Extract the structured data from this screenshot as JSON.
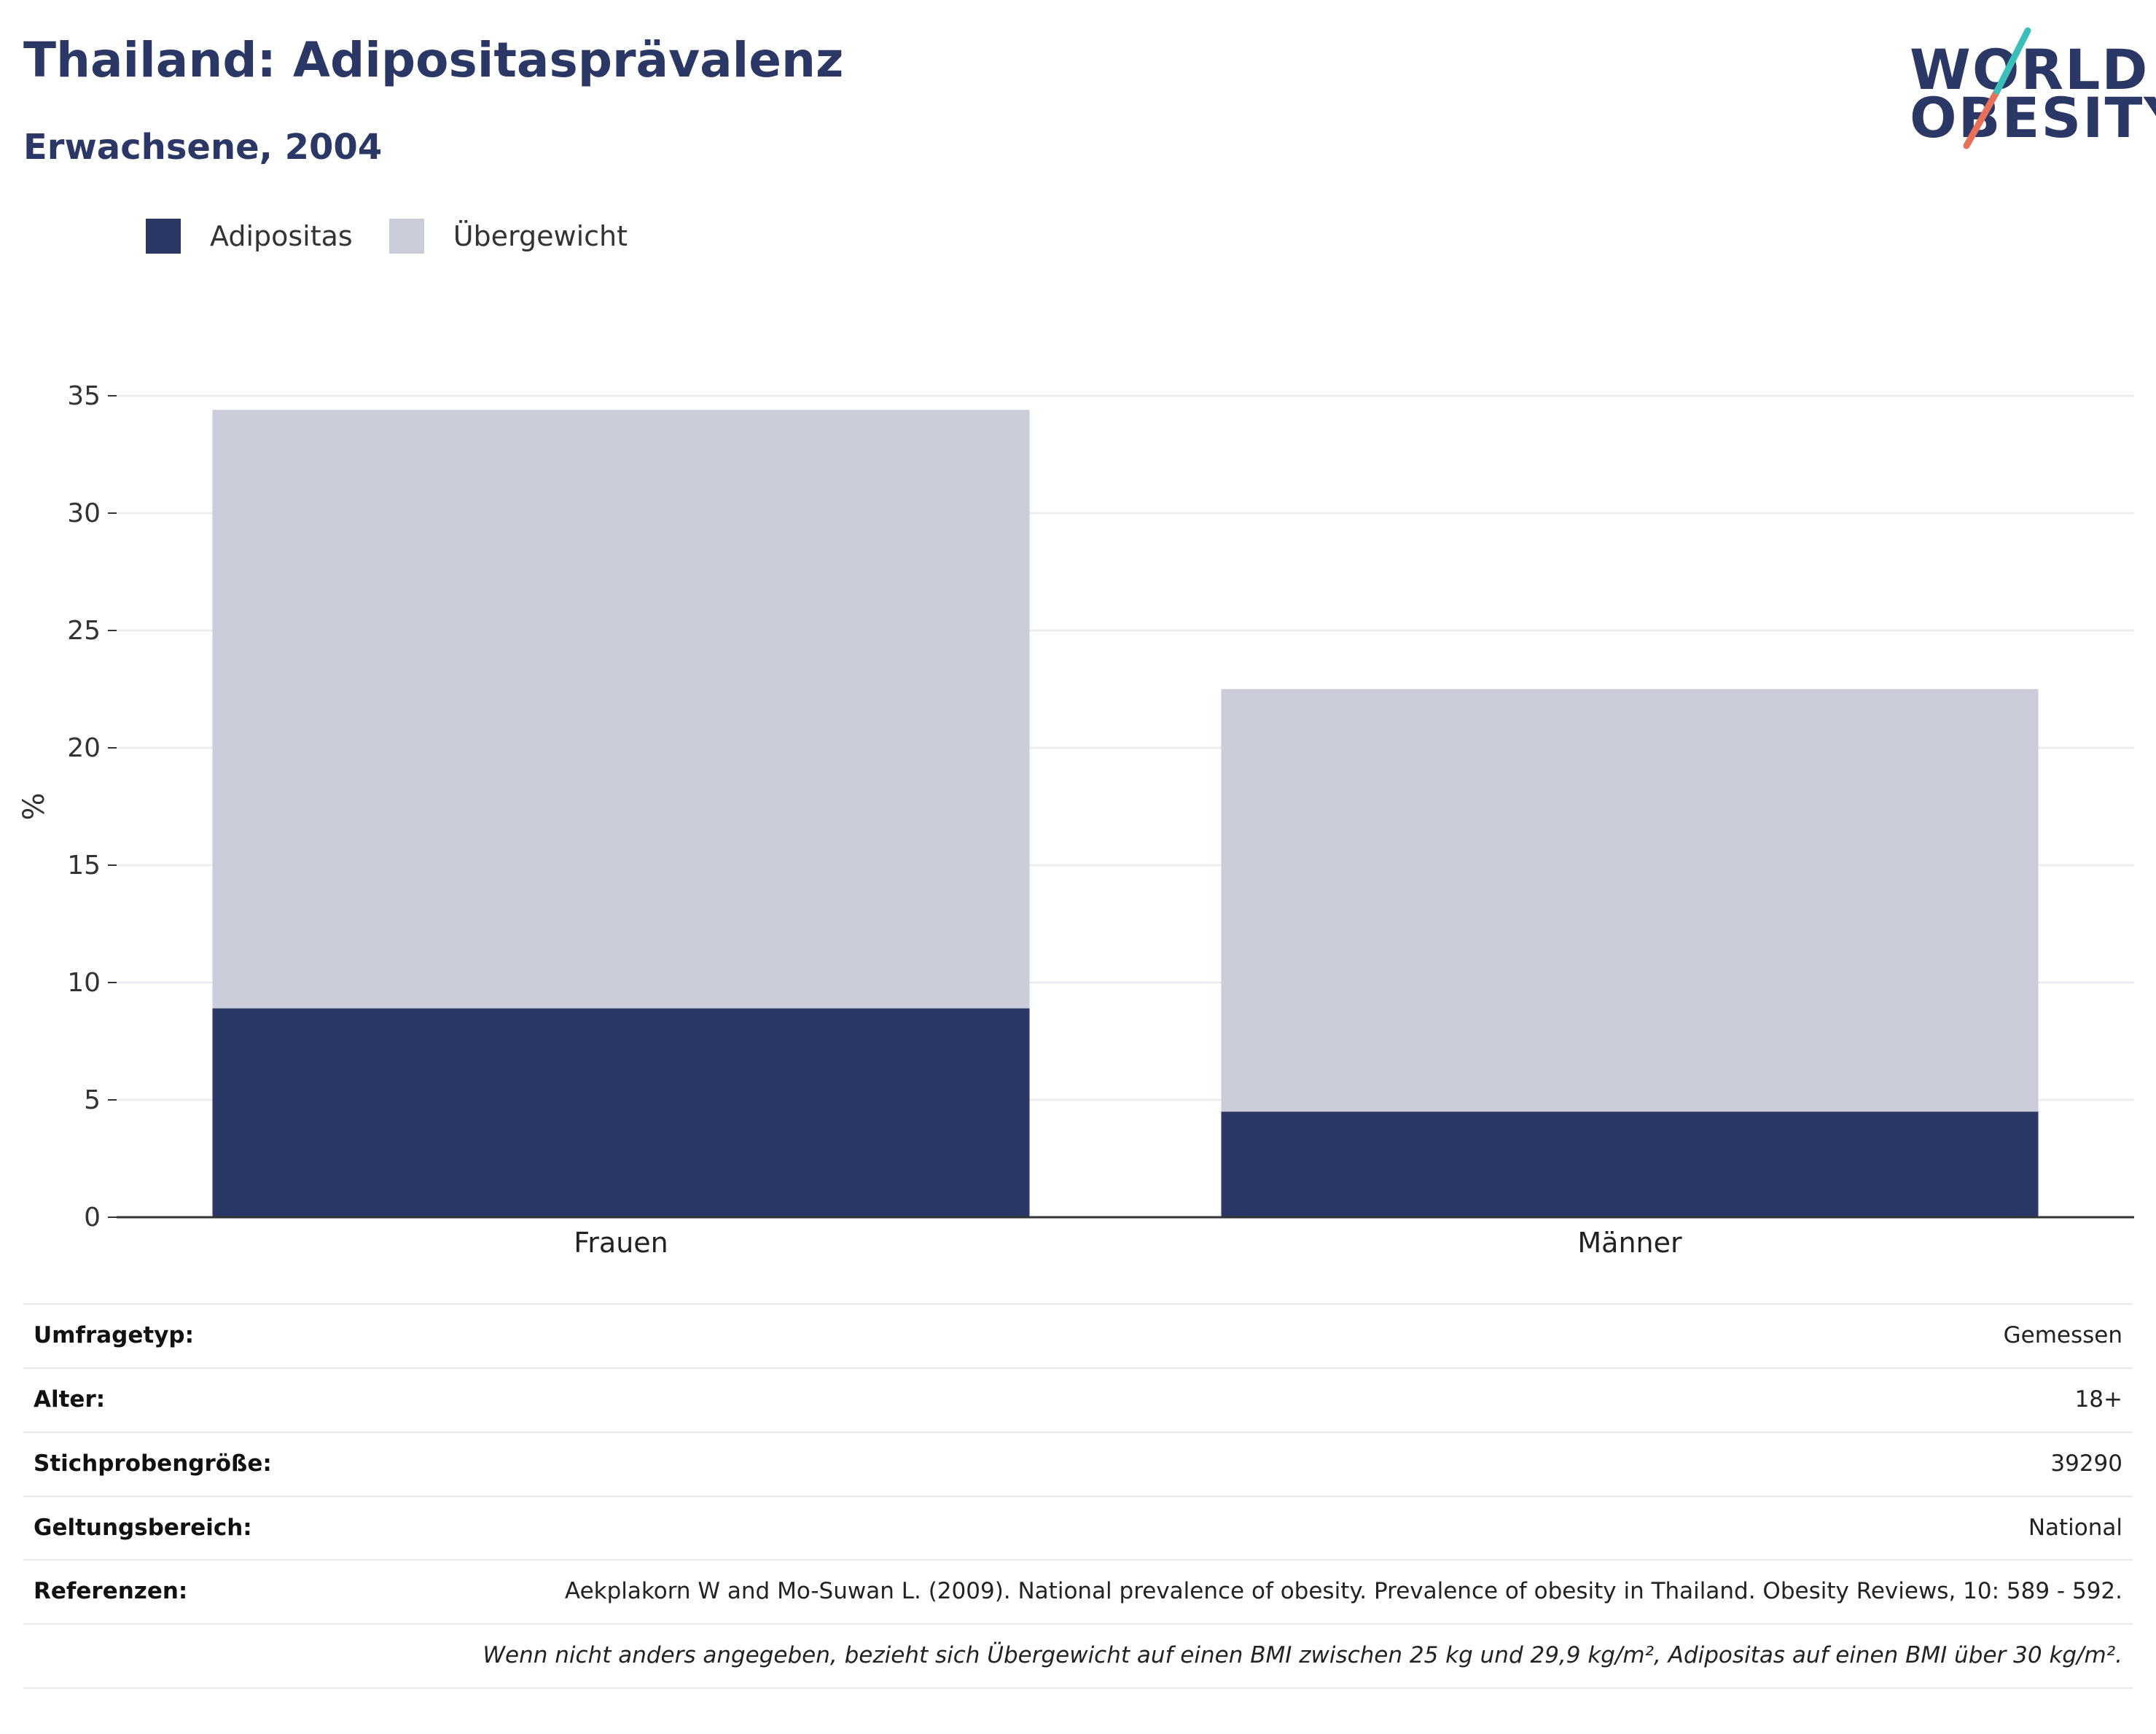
{
  "header": {
    "title": "Thailand: Adipositasprävalenz",
    "subtitle": "Erwachsene, 2004"
  },
  "logo": {
    "line1": "WORLD",
    "line2": "OBESITY"
  },
  "colors": {
    "obesity": "#2b3764",
    "overweight": "#cacdd9",
    "title": "#2b3764",
    "logo_teal": "#3bbfb8",
    "logo_red": "#e8705a"
  },
  "chart_data": {
    "type": "bar",
    "stacked": true,
    "categories": [
      "Frauen",
      "Männer"
    ],
    "series": [
      {
        "name": "Adipositas",
        "values": [
          8.9,
          4.5
        ]
      },
      {
        "name": "Übergewicht",
        "values": [
          25.5,
          18.0
        ]
      }
    ],
    "ylabel": "%",
    "ylim": [
      0,
      35
    ],
    "yticks": [
      0,
      5,
      10,
      15,
      20,
      25,
      30,
      35
    ],
    "grid": true,
    "legend": "top-left"
  },
  "details": {
    "rows": [
      {
        "label": "Umfragetyp:",
        "value": "Gemessen"
      },
      {
        "label": "Alter:",
        "value": "18+"
      },
      {
        "label": "Stichprobengröße:",
        "value": "39290"
      },
      {
        "label": "Geltungsbereich:",
        "value": "National"
      },
      {
        "label": "Referenzen:",
        "value": "Aekplakorn W and Mo-Suwan L. (2009). National prevalence of obesity. Prevalence of obesity in Thailand. Obesity Reviews, 10: 589 - 592."
      }
    ],
    "note": "Wenn nicht anders angegeben, bezieht sich Übergewicht auf einen BMI zwischen 25 kg und 29,9 kg/m², Adipositas auf einen BMI über 30 kg/m²."
  }
}
